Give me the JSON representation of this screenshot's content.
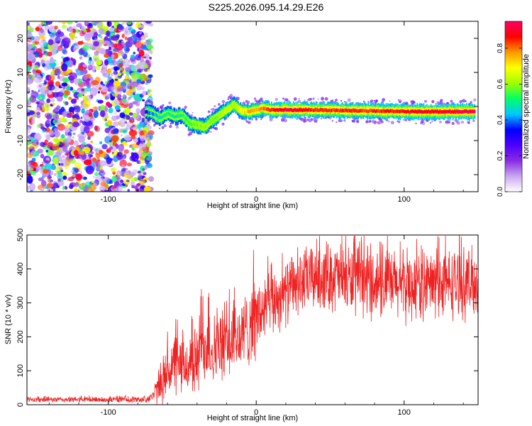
{
  "figure": {
    "title": "S225.2026.095.14.29.E26"
  },
  "chart_data": [
    {
      "type": "heatmap",
      "title": "S225.2026.095.14.29.E26",
      "xlabel": "Height of straight line (km)",
      "ylabel": "Frequency (Hz)",
      "xlim": [
        -155,
        150
      ],
      "ylim": [
        -25,
        25
      ],
      "x_ticks": [
        -100,
        0,
        100
      ],
      "x_tick_labels": [
        "-100",
        "0",
        "100"
      ],
      "y_ticks": [
        -20,
        -10,
        0,
        10,
        20
      ],
      "y_tick_labels": [
        "-20",
        "-10",
        "0",
        "10",
        "20"
      ],
      "colorbar": {
        "label": "Normalized spectral amplitude",
        "range": [
          0,
          0.95
        ],
        "ticks": [
          0,
          0.2,
          0.4,
          0.6,
          0.8
        ],
        "tick_labels": [
          "0.0",
          "0.2",
          "0.4",
          "0.6",
          "0.8"
        ],
        "colormap": [
          "#ffffff",
          "#c9a6f2",
          "#8a2be2",
          "#4b00ff",
          "#0000ff",
          "#00c8ff",
          "#00ff66",
          "#a0ff00",
          "#ffff00",
          "#ff9900",
          "#ff0000",
          "#ff0066"
        ]
      },
      "noise_region": {
        "x_range": [
          -155,
          -75
        ],
        "y_range": [
          -25,
          25
        ],
        "description": "scattered low-amplitude speckle"
      },
      "ridge": {
        "x": [
          -75,
          -70,
          -65,
          -60,
          -55,
          -50,
          -45,
          -40,
          -35,
          -30,
          -25,
          -20,
          -15,
          -10,
          -5,
          0,
          5,
          10,
          20,
          40,
          60,
          80,
          100,
          120,
          148
        ],
        "y": [
          -1.5,
          -2,
          -3.5,
          -2,
          -3,
          -2.5,
          -5,
          -5.5,
          -6,
          -4,
          -2.5,
          -1,
          0.5,
          -1.5,
          -1.5,
          -1,
          -0.5,
          -1,
          -1,
          -1,
          -1.2,
          -1.3,
          -1.5,
          -1.5,
          -1.5
        ],
        "amplitude": [
          0.35,
          0.4,
          0.45,
          0.5,
          0.45,
          0.5,
          0.55,
          0.55,
          0.6,
          0.55,
          0.6,
          0.65,
          0.6,
          0.7,
          0.75,
          0.75,
          0.8,
          0.85,
          0.95,
          0.85,
          0.85,
          0.85,
          0.88,
          0.9,
          0.95
        ]
      }
    },
    {
      "type": "line",
      "xlabel": "Height of straight line (km)",
      "ylabel": "SNR (10 * v/v)",
      "xlim": [
        -155,
        150
      ],
      "ylim": [
        0,
        500
      ],
      "x_ticks": [
        -100,
        0,
        100
      ],
      "x_tick_labels": [
        "-100",
        "0",
        "100"
      ],
      "y_ticks": [
        0,
        100,
        200,
        300,
        400,
        500
      ],
      "y_tick_labels": [
        "0",
        "100",
        "200",
        "300",
        "400",
        "500"
      ],
      "series": [
        {
          "name": "SNR",
          "color": "#ee2222",
          "envelope": {
            "x": [
              -155,
              -75,
              -70,
              -65,
              -60,
              -55,
              -50,
              -45,
              -40,
              -36,
              -35,
              -33,
              -30,
              -25,
              -20,
              -15,
              -10,
              -5,
              -3,
              0,
              5,
              10,
              20,
              30,
              40,
              50,
              60,
              80,
              100,
              120,
              150
            ],
            "mean": [
              15,
              15,
              25,
              55,
              100,
              120,
              110,
              120,
              130,
              200,
              170,
              190,
              160,
              170,
              180,
              190,
              200,
              230,
              260,
              250,
              280,
              300,
              330,
              360,
              380,
              380,
              370,
              360,
              350,
              355,
              360
            ],
            "spread": [
              8,
              10,
              20,
              60,
              90,
              100,
              90,
              100,
              110,
              190,
              120,
              130,
              110,
              110,
              110,
              120,
              120,
              120,
              160,
              120,
              110,
              110,
              100,
              100,
              110,
              110,
              110,
              110,
              110,
              110,
              110
            ]
          }
        }
      ]
    }
  ]
}
